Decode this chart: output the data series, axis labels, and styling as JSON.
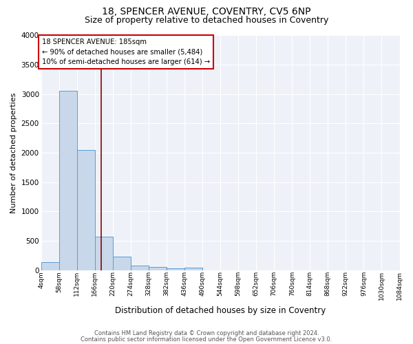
{
  "title_line1": "18, SPENCER AVENUE, COVENTRY, CV5 6NP",
  "title_line2": "Size of property relative to detached houses in Coventry",
  "xlabel": "Distribution of detached houses by size in Coventry",
  "ylabel": "Number of detached properties",
  "footnote1": "Contains HM Land Registry data © Crown copyright and database right 2024.",
  "footnote2": "Contains public sector information licensed under the Open Government Licence v3.0.",
  "bar_edges": [
    4,
    58,
    112,
    166,
    220,
    274,
    328,
    382,
    436,
    490,
    544,
    598,
    652,
    706,
    760,
    814,
    868,
    922,
    976,
    1030,
    1084
  ],
  "bar_heights": [
    140,
    3060,
    2050,
    570,
    230,
    80,
    55,
    30,
    45,
    0,
    0,
    0,
    0,
    0,
    0,
    0,
    0,
    0,
    0,
    0
  ],
  "bar_color": "#c8d8ea",
  "bar_edgecolor": "#5b9bd5",
  "property_size": 185,
  "vertical_line_color": "#8b0000",
  "annotation_text": "18 SPENCER AVENUE: 185sqm\n← 90% of detached houses are smaller (5,484)\n10% of semi-detached houses are larger (614) →",
  "annotation_box_edgecolor": "#cc0000",
  "annotation_box_facecolor": "#ffffff",
  "ylim": [
    0,
    4000
  ],
  "background_color": "#eef2f8",
  "grid_color": "#ffffff",
  "title_fontsize": 10,
  "subtitle_fontsize": 9,
  "tick_labels": [
    "4sqm",
    "58sqm",
    "112sqm",
    "166sqm",
    "220sqm",
    "274sqm",
    "328sqm",
    "382sqm",
    "436sqm",
    "490sqm",
    "544sqm",
    "598sqm",
    "652sqm",
    "706sqm",
    "760sqm",
    "814sqm",
    "868sqm",
    "922sqm",
    "976sqm",
    "1030sqm",
    "1084sqm"
  ]
}
